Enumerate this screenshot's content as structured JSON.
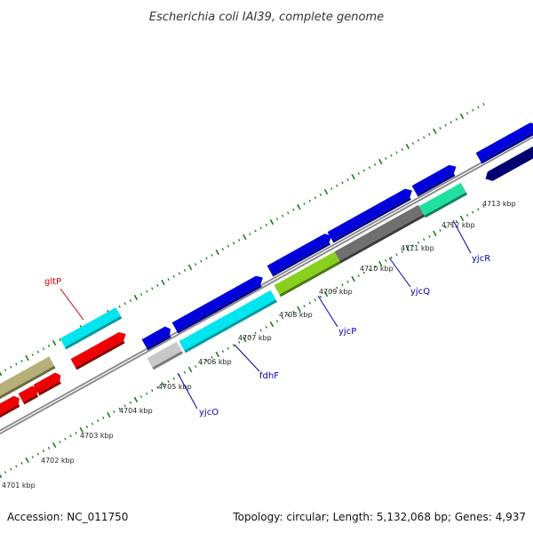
{
  "title": "Escherichia coli IAI39, complete genome",
  "footer": {
    "accession": "Accession: NC_011750",
    "summary": "Topology: circular; Length: 5,132,068 bp; Genes: 4,937"
  },
  "colors": {
    "backbone": "#8a8a8a",
    "ticks": "#1e7a1e",
    "forward_blue": "#0000dd",
    "navy": "#000070",
    "cyan": "#00e5ee",
    "red": "#ee0000",
    "olive": "#b5b07a",
    "silver": "#c8c8c8",
    "lime": "#88d020",
    "gray": "#707070",
    "teal": "#20e0a0",
    "label_red": "#cc0000",
    "label_blue": "#0000aa"
  },
  "tick_labels": [
    "4701 kbp",
    "4702 kbp",
    "4703 kbp",
    "4704 kbp",
    "4705 kbp",
    "4706 kbp",
    "4707 kbp",
    "4708 kbp",
    "4709 kbp",
    "4710 kbp",
    "4711 kbp",
    "4712 kbp",
    "4713 kbp"
  ],
  "gene_labels": [
    {
      "text": "gltP",
      "color": "label_red"
    },
    {
      "text": "yjcO",
      "color": "label_blue"
    },
    {
      "text": "fdhF",
      "color": "label_blue"
    },
    {
      "text": "yjcP",
      "color": "label_blue"
    },
    {
      "text": "yjcQ",
      "color": "label_blue"
    },
    {
      "text": "yjcR",
      "color": "label_blue"
    }
  ]
}
